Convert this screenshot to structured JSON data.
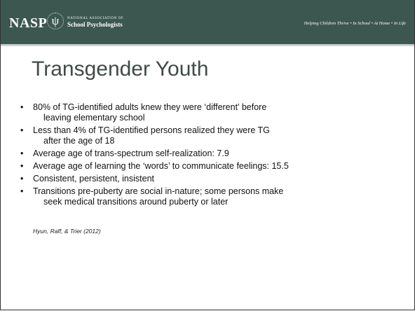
{
  "header": {
    "logo": "NASP",
    "symbol": "ψ",
    "org_line1": "NATIONAL ASSOCIATION OF",
    "org_line2": "School Psychologists",
    "tagline": "Helping Children Thrive • In School • At Home • In Life"
  },
  "title": "Transgender Youth",
  "bullets": [
    [
      "80% of TG-identified adults knew they were ‘different’ before",
      "leaving elementary school"
    ],
    [
      "Less than 4% of TG-identified persons realized they were TG",
      "after the age of 18"
    ],
    [
      "Average age of trans-spectrum self-realization: 7.9"
    ],
    [
      "Average age of learning the ‘words’ to communicate feelings: 15.5"
    ],
    [
      "Consistent, persistent, insistent"
    ],
    [
      "Transitions pre-puberty are social in-nature; some persons make",
      "seek medical transitions around puberty or later"
    ]
  ],
  "citation": "Hyun, Raff, & Trier (2012)"
}
